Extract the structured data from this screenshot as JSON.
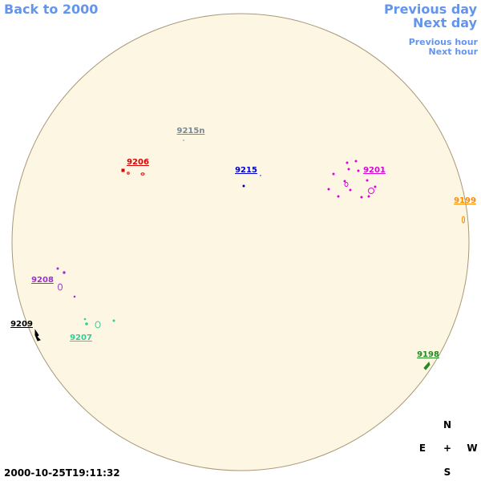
{
  "navigation": {
    "back": "Back to 2000",
    "previous_day": "Previous day",
    "next_day": "Next day",
    "previous_hour": "Previous hour",
    "next_hour": "Next hour"
  },
  "regions": [
    {
      "label": "9215n",
      "color": "#778899"
    },
    {
      "label": "9206",
      "color": "#dd0000"
    },
    {
      "label": "9215",
      "color": "#0000cc"
    },
    {
      "label": "9201",
      "color": "#dd00dd"
    },
    {
      "label": "9199",
      "color": "#ff8c00"
    },
    {
      "label": "9208",
      "color": "#9932cc"
    },
    {
      "label": "9209",
      "color": "#000000"
    },
    {
      "label": "9207",
      "color": "#33cc99"
    },
    {
      "label": "9198",
      "color": "#228b22"
    }
  ],
  "compass": {
    "north": "N",
    "east": "E",
    "center": "+",
    "west": "W",
    "south": "S"
  },
  "timestamp": "2000-10-25T19:11:32"
}
